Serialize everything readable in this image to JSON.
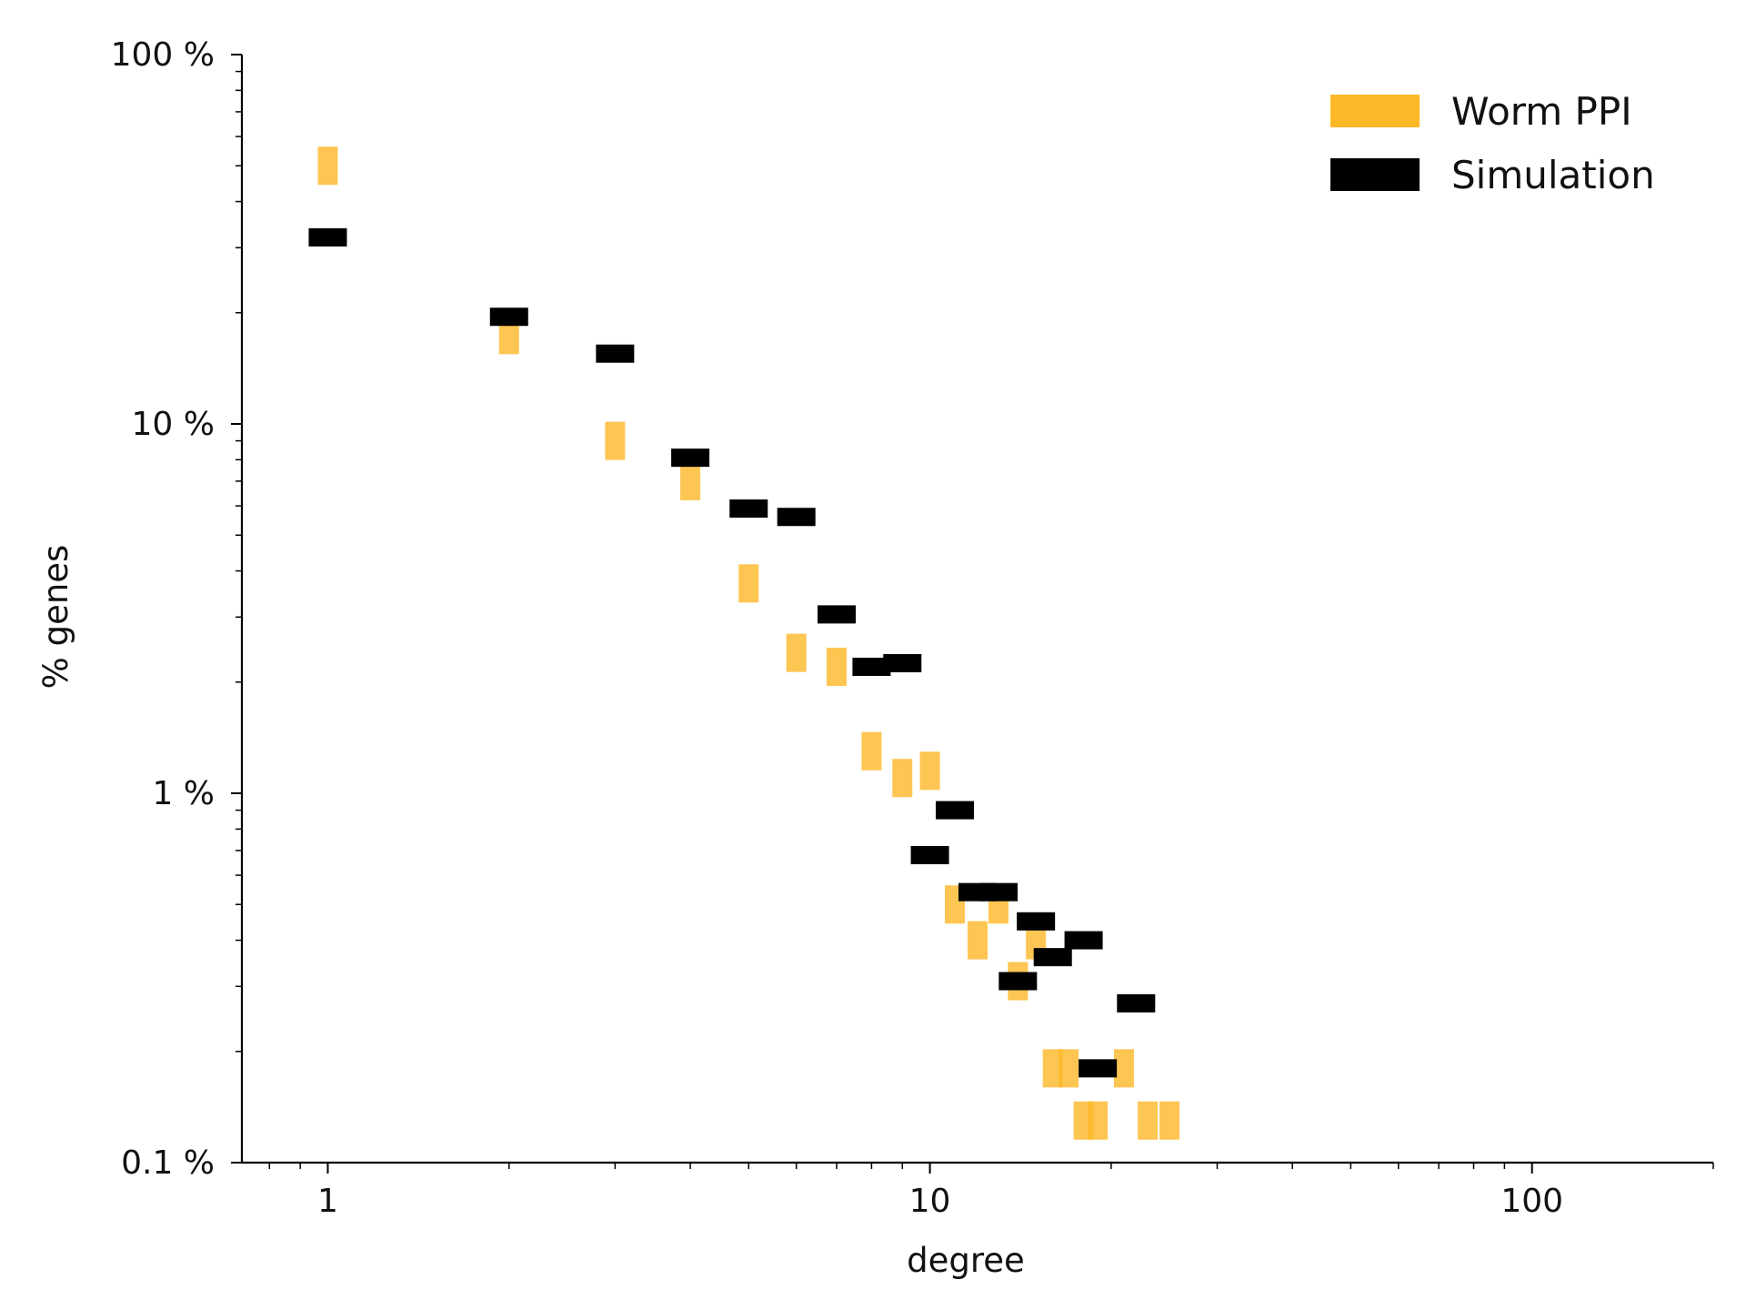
{
  "chart_data": {
    "type": "scatter",
    "xlabel": "degree",
    "ylabel": "% genes",
    "x_scale": "log",
    "y_scale": "log",
    "xlim": [
      0.72,
      200
    ],
    "ylim": [
      0.1,
      100
    ],
    "x_ticks": [
      {
        "value": 1,
        "label": "1"
      },
      {
        "value": 10,
        "label": "10"
      },
      {
        "value": 100,
        "label": "100"
      }
    ],
    "y_ticks": [
      {
        "value": 0.1,
        "label": "0.1 %"
      },
      {
        "value": 1,
        "label": "1 %"
      },
      {
        "value": 10,
        "label": "10 %"
      },
      {
        "value": 100,
        "label": "100 %"
      }
    ],
    "grid": false,
    "legend": {
      "position": "top-right"
    },
    "series": [
      {
        "name": "Worm PPI",
        "color": "#fdb827",
        "marker": "vertical-bar",
        "points": [
          {
            "x": 1,
            "y": 50.0
          },
          {
            "x": 2,
            "y": 17.4
          },
          {
            "x": 3,
            "y": 9.0
          },
          {
            "x": 4,
            "y": 7.0
          },
          {
            "x": 5,
            "y": 3.7
          },
          {
            "x": 6,
            "y": 2.4
          },
          {
            "x": 7,
            "y": 2.2
          },
          {
            "x": 8,
            "y": 1.3
          },
          {
            "x": 9,
            "y": 1.1
          },
          {
            "x": 10,
            "y": 1.15
          },
          {
            "x": 11,
            "y": 0.5
          },
          {
            "x": 12,
            "y": 0.4
          },
          {
            "x": 13,
            "y": 0.5
          },
          {
            "x": 14,
            "y": 0.31
          },
          {
            "x": 15,
            "y": 0.4
          },
          {
            "x": 16,
            "y": 0.18
          },
          {
            "x": 17,
            "y": 0.18
          },
          {
            "x": 18,
            "y": 0.13
          },
          {
            "x": 19,
            "y": 0.13
          },
          {
            "x": 21,
            "y": 0.18
          },
          {
            "x": 23,
            "y": 0.13
          },
          {
            "x": 25,
            "y": 0.13
          }
        ]
      },
      {
        "name": "Simulation",
        "color": "#000000",
        "marker": "horizontal-bar",
        "points": [
          {
            "x": 1,
            "y": 32.0
          },
          {
            "x": 2,
            "y": 19.5
          },
          {
            "x": 3,
            "y": 15.5
          },
          {
            "x": 4,
            "y": 8.1
          },
          {
            "x": 5,
            "y": 5.9
          },
          {
            "x": 6,
            "y": 5.6
          },
          {
            "x": 7,
            "y": 3.05
          },
          {
            "x": 8,
            "y": 2.2
          },
          {
            "x": 9,
            "y": 2.25
          },
          {
            "x": 10,
            "y": 0.68
          },
          {
            "x": 11,
            "y": 0.9
          },
          {
            "x": 12,
            "y": 0.54
          },
          {
            "x": 13,
            "y": 0.54
          },
          {
            "x": 14,
            "y": 0.31
          },
          {
            "x": 15,
            "y": 0.45
          },
          {
            "x": 16,
            "y": 0.36
          },
          {
            "x": 18,
            "y": 0.4
          },
          {
            "x": 19,
            "y": 0.18
          },
          {
            "x": 22,
            "y": 0.27
          }
        ]
      }
    ]
  }
}
